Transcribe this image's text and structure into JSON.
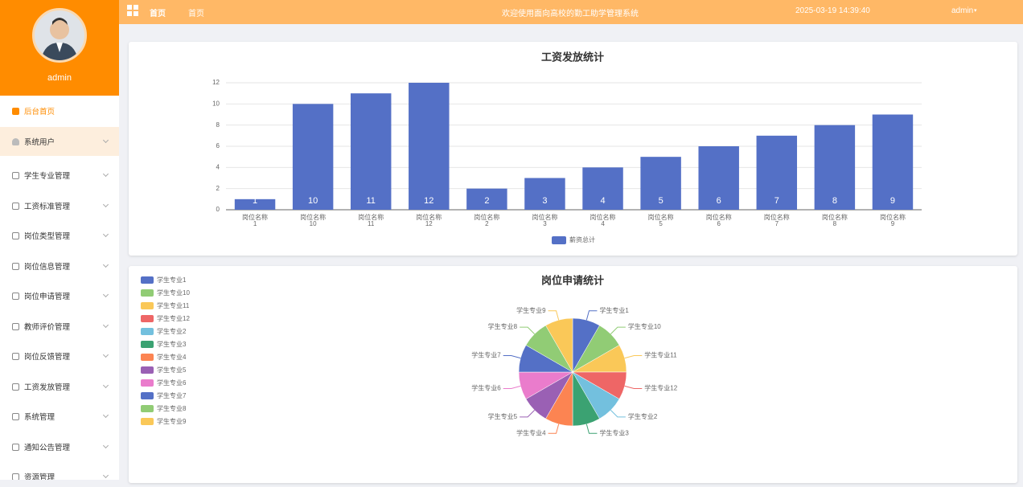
{
  "header": {
    "breadcrumb": [
      "首页",
      "首页"
    ],
    "title": "欢迎使用面向高校的勤工助学管理系统",
    "datetime": "2025-03-19 14:39:40",
    "user": "admin"
  },
  "sidebar": {
    "username": "admin",
    "menu": [
      "后台首页",
      "系统用户",
      "学生专业管理",
      "工资标准管理",
      "岗位类型管理",
      "岗位信息管理",
      "岗位申请管理",
      "教师评价管理",
      "岗位反馈管理",
      "工资发放管理",
      "系统管理",
      "通知公告管理",
      "资源管理"
    ]
  },
  "chart_data": [
    {
      "type": "bar",
      "title": "工资发放统计",
      "categories": [
        "岗位名称1",
        "岗位名称10",
        "岗位名称11",
        "岗位名称12",
        "岗位名称2",
        "岗位名称3",
        "岗位名称4",
        "岗位名称5",
        "岗位名称6",
        "岗位名称7",
        "岗位名称8",
        "岗位名称9"
      ],
      "series": [
        {
          "name": "薪资总计",
          "color": "#5470c6",
          "values": [
            1,
            10,
            11,
            12,
            2,
            3,
            4,
            5,
            6,
            7,
            8,
            9
          ]
        }
      ],
      "ylim": [
        0,
        12
      ],
      "yticks": [
        0,
        2,
        4,
        6,
        8,
        10,
        12
      ],
      "grid": true,
      "legend": "bottom"
    },
    {
      "type": "pie",
      "title": "岗位申请统计",
      "categories": [
        "学生专业1",
        "学生专业10",
        "学生专业11",
        "学生专业12",
        "学生专业2",
        "学生专业3",
        "学生专业4",
        "学生专业5",
        "学生专业6",
        "学生专业7",
        "学生专业8",
        "学生专业9"
      ],
      "values": [
        1,
        1,
        1,
        1,
        1,
        1,
        1,
        1,
        1,
        1,
        1,
        1
      ],
      "colors": [
        "#5470c6",
        "#91cc75",
        "#fac858",
        "#ee6666",
        "#73c0de",
        "#3ba272",
        "#fc8452",
        "#9a60b4",
        "#ea7ccc",
        "#5470c6",
        "#91cc75",
        "#fac858"
      ],
      "legend": "top-left"
    }
  ]
}
